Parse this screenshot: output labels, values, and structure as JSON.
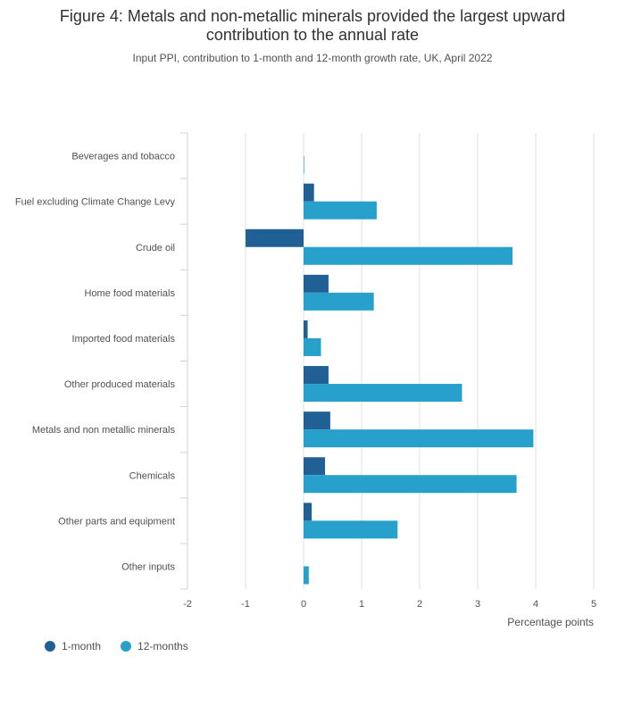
{
  "title_line1": "Figure 4: Metals and non-metallic minerals provided the largest upward",
  "title_line2": "contribution to the annual rate",
  "subtitle": "Input PPI, contribution to 1-month and 12-month growth rate, UK, April 2022",
  "colors": {
    "one_month": "#206095",
    "twelve_months": "#27a0cc",
    "grid": "#e2e2e3",
    "axis": "#d0d0d8",
    "text": "#505050"
  },
  "chart_data": {
    "type": "bar",
    "orientation": "horizontal",
    "categories": [
      "Beverages and tobacco",
      "Fuel excluding Climate Change Levy",
      "Crude oil",
      "Home food materials",
      "Imported food materials",
      "Other produced materials",
      "Metals and non metallic minerals",
      "Chemicals",
      "Other parts and equipment",
      "Other inputs"
    ],
    "series": [
      {
        "name": "1-month",
        "values": [
          0,
          0.18,
          -1.0,
          0.43,
          0.07,
          0.43,
          0.46,
          0.37,
          0.14,
          0
        ]
      },
      {
        "name": "12-months",
        "values": [
          0.01,
          1.26,
          3.6,
          1.21,
          0.3,
          2.73,
          3.96,
          3.67,
          1.62,
          0.09
        ]
      }
    ],
    "xlabel": "Percentage points",
    "xlim": [
      -2,
      5
    ],
    "xticks": [
      -2,
      -1,
      0,
      1,
      2,
      3,
      4,
      5
    ],
    "grid": true,
    "legend_position": "bottom-left"
  }
}
